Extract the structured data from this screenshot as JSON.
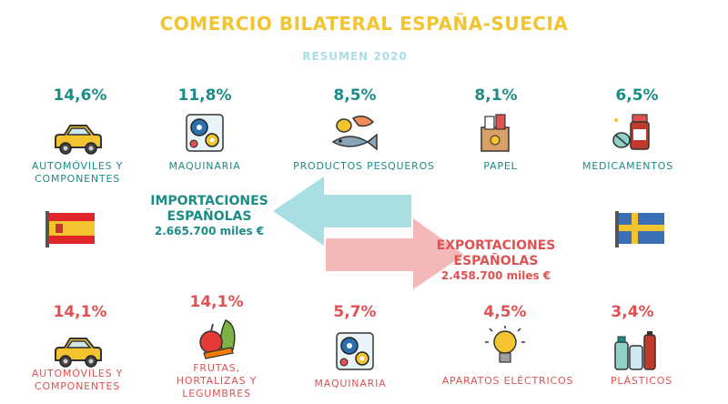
{
  "title": "COMERCIO BILATERAL ESPAÑA-SUECIA",
  "subtitle": "RESUMEN 2020",
  "imports": {
    "title_line1": "IMPORTACIONES",
    "title_line2": "ESPAÑOLAS",
    "amount": "2.665.700 miles €",
    "items": [
      {
        "pct": "14,6%",
        "label_line1": "AUTOMÓVILES Y",
        "label_line2": "COMPONENTES",
        "icon": "car-icon"
      },
      {
        "pct": "11,8%",
        "label_line1": "MAQUINARIA",
        "label_line2": "",
        "icon": "gears-icon"
      },
      {
        "pct": "8,5%",
        "label_line1": "PRODUCTOS PESQUEROS",
        "label_line2": "",
        "icon": "seafood-icon"
      },
      {
        "pct": "8,1%",
        "label_line1": "PAPEL",
        "label_line2": "",
        "icon": "paper-icon"
      },
      {
        "pct": "6,5%",
        "label_line1": "MEDICAMENTOS",
        "label_line2": "",
        "icon": "medicine-icon"
      }
    ]
  },
  "exports": {
    "title_line1": "EXPORTACIONES",
    "title_line2": "ESPAÑOLAS",
    "amount": "2.458.700 miles €",
    "items": [
      {
        "pct": "14,1%",
        "label_line1": "AUTOMÓVILES Y",
        "label_line2": "COMPONENTES",
        "label_line3": "",
        "icon": "car-icon"
      },
      {
        "pct": "14,1%",
        "label_line1": "FRUTAS,",
        "label_line2": "HORTALIZAS Y",
        "label_line3": "LEGUMBRES",
        "icon": "fruits-icon"
      },
      {
        "pct": "5,7%",
        "label_line1": "MAQUINARIA",
        "label_line2": "",
        "label_line3": "",
        "icon": "gears-icon"
      },
      {
        "pct": "4,5%",
        "label_line1": "APARATOS ELÉCTRICOS",
        "label_line2": "",
        "label_line3": "",
        "icon": "lightbulb-icon"
      },
      {
        "pct": "3,4%",
        "label_line1": "PLÁSTICOS",
        "label_line2": "",
        "label_line3": "",
        "icon": "bottles-icon"
      }
    ]
  },
  "colors": {
    "title": "#f4c430",
    "subtitle": "#a8dfe2",
    "imports": "#1b8c86",
    "exports": "#e05252",
    "import_arrow": "#a8dfe2",
    "export_arrow": "#f4b8b8"
  },
  "flags": {
    "left": "spain-flag-icon",
    "right": "sweden-flag-icon"
  }
}
